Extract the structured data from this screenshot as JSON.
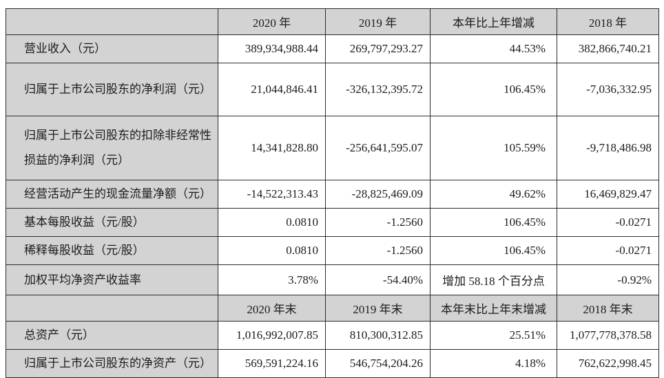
{
  "colors": {
    "header_bg": "#d3d3d3",
    "label_bg": "#d3d3d3",
    "border": "#2b2b2b",
    "text": "#1b1b1b",
    "page_bg": "#ffffff"
  },
  "table": {
    "sections": [
      {
        "headers": [
          "",
          "2020 年",
          "2019 年",
          "本年比上年增减",
          "2018 年"
        ],
        "rows": [
          {
            "label": "营业收入（元）",
            "values": [
              "389,934,988.44",
              "269,797,293.27",
              "44.53%",
              "382,866,740.21"
            ]
          },
          {
            "label": "归属于上市公司股东的净利润（元）",
            "values": [
              "21,044,846.41",
              "-326,132,395.72",
              "106.45%",
              "-7,036,332.95"
            ]
          },
          {
            "label": "归属于上市公司股东的扣除非经常性损益的净利润（元）",
            "values": [
              "14,341,828.80",
              "-256,641,595.07",
              "105.59%",
              "-9,718,486.98"
            ]
          },
          {
            "label": "经营活动产生的现金流量净额（元）",
            "values": [
              "-14,522,313.43",
              "-28,825,469.09",
              "49.62%",
              "16,469,829.47"
            ]
          },
          {
            "label": "基本每股收益（元/股）",
            "values": [
              "0.0810",
              "-1.2560",
              "106.45%",
              "-0.0271"
            ]
          },
          {
            "label": "稀释每股收益（元/股）",
            "values": [
              "0.0810",
              "-1.2560",
              "106.45%",
              "-0.0271"
            ]
          },
          {
            "label": "加权平均净资产收益率",
            "values": [
              "3.78%",
              "-54.40%",
              "增加 58.18 个百分点",
              "-0.92%"
            ],
            "change_align": "center"
          }
        ]
      },
      {
        "headers": [
          "",
          "2020 年末",
          "2019 年末",
          "本年末比上年末增减",
          "2018 年末"
        ],
        "rows": [
          {
            "label": "总资产（元）",
            "values": [
              "1,016,992,007.85",
              "810,300,312.85",
              "25.51%",
              "1,077,778,378.58"
            ]
          },
          {
            "label": "归属于上市公司股东的净资产（元）",
            "values": [
              "569,591,224.16",
              "546,754,204.26",
              "4.18%",
              "762,622,998.45"
            ]
          }
        ]
      }
    ]
  }
}
